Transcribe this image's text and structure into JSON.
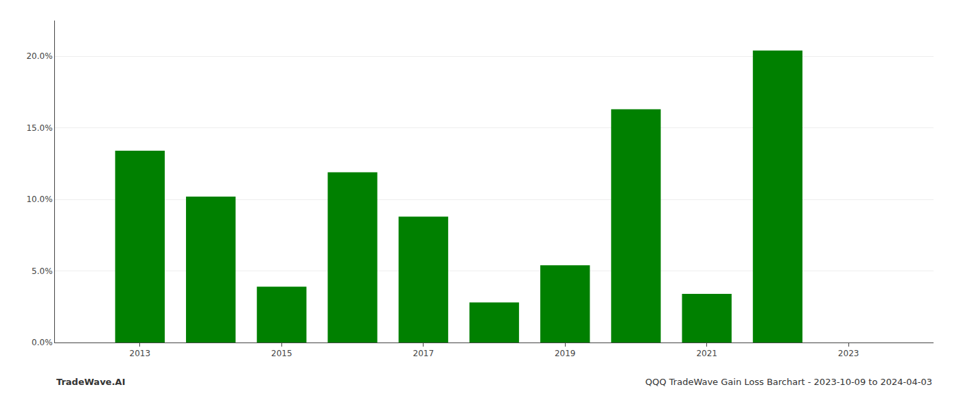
{
  "chart_data": {
    "type": "bar",
    "x": [
      2013,
      2014,
      2015,
      2016,
      2017,
      2018,
      2019,
      2020,
      2021,
      2022,
      2023
    ],
    "values": [
      0.134,
      0.102,
      0.039,
      0.119,
      0.088,
      0.028,
      0.054,
      0.163,
      0.034,
      0.204,
      0.0
    ],
    "color": "#008000",
    "xlim": [
      2011.8,
      2024.2
    ],
    "xticks": [
      2013,
      2015,
      2017,
      2019,
      2021,
      2023
    ],
    "ylim": [
      0,
      0.225
    ],
    "yticks": [
      {
        "value": 0.0,
        "label": "0.0%"
      },
      {
        "value": 0.05,
        "label": "5.0%"
      },
      {
        "value": 0.1,
        "label": "10.0%"
      },
      {
        "value": 0.15,
        "label": "15.0%"
      },
      {
        "value": 0.2,
        "label": "20.0%"
      }
    ],
    "grid": true,
    "annotations": [
      "TradeWave.AI",
      "QQQ TradeWave Gain Loss Barchart - 2023-10-09 to 2024-04-03"
    ]
  }
}
